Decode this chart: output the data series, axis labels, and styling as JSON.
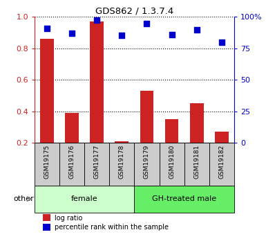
{
  "title": "GDS862 / 1.3.7.4",
  "categories": [
    "GSM19175",
    "GSM19176",
    "GSM19177",
    "GSM19178",
    "GSM19179",
    "GSM19180",
    "GSM19181",
    "GSM19182"
  ],
  "log_ratio": [
    0.86,
    0.39,
    0.97,
    0.21,
    0.53,
    0.35,
    0.45,
    0.27
  ],
  "percentile_rank": [
    91,
    87,
    97.5,
    85.5,
    94.5,
    86,
    89.5,
    79.5
  ],
  "bar_color": "#cc2222",
  "dot_color": "#0000cc",
  "groups": [
    {
      "label": "female",
      "start": 0,
      "end": 4,
      "color": "#ccffcc"
    },
    {
      "label": "GH-treated male",
      "start": 4,
      "end": 8,
      "color": "#66ee66"
    }
  ],
  "left_yticks": [
    0.2,
    0.4,
    0.6,
    0.8,
    1.0
  ],
  "right_yticks": [
    0,
    25,
    50,
    75,
    100
  ],
  "right_ytick_labels": [
    "0",
    "25",
    "50",
    "75",
    "100%"
  ],
  "left_color": "#cc2222",
  "right_color": "#0000cc",
  "ylim_left": [
    0.2,
    1.0
  ],
  "ylim_right": [
    0,
    100
  ],
  "legend_red_label": "log ratio",
  "legend_blue_label": "percentile rank within the sample",
  "other_label": "other",
  "grid_style": "dotted",
  "bar_width": 0.55,
  "dot_size": 40,
  "sample_box_color": "#cccccc",
  "fig_bg": "#ffffff"
}
